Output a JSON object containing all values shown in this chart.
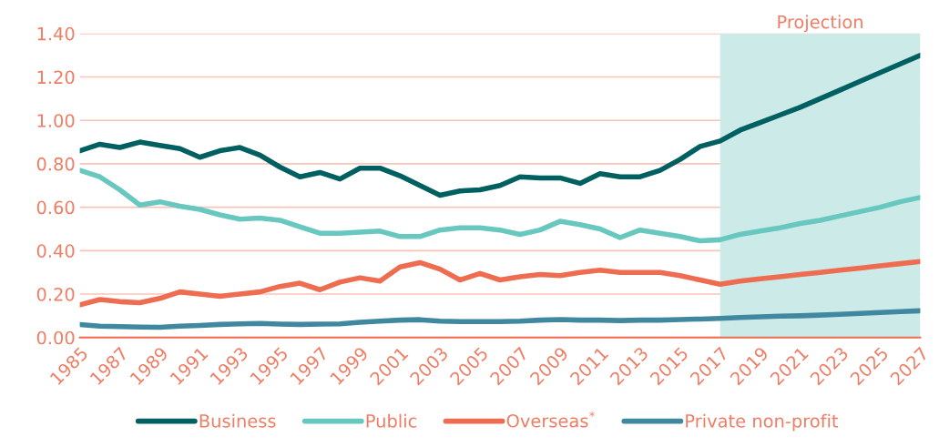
{
  "chart_data": {
    "type": "line",
    "x": [
      1985,
      1986,
      1987,
      1988,
      1989,
      1990,
      1991,
      1992,
      1993,
      1994,
      1995,
      1996,
      1997,
      1998,
      1999,
      2000,
      2001,
      2002,
      2003,
      2004,
      2005,
      2006,
      2007,
      2008,
      2009,
      2010,
      2011,
      2012,
      2013,
      2014,
      2015,
      2016,
      2017,
      2018,
      2019,
      2020,
      2021,
      2022,
      2023,
      2024,
      2025,
      2026,
      2027
    ],
    "series": [
      {
        "name": "Business",
        "color": "#005f60",
        "values": [
          0.86,
          0.89,
          0.875,
          0.9,
          0.885,
          0.87,
          0.83,
          0.86,
          0.875,
          0.84,
          0.785,
          0.74,
          0.76,
          0.73,
          0.78,
          0.78,
          0.745,
          0.7,
          0.655,
          0.675,
          0.68,
          0.7,
          0.74,
          0.735,
          0.735,
          0.71,
          0.755,
          0.74,
          0.74,
          0.77,
          0.82,
          0.88,
          0.905,
          0.955,
          0.99,
          1.025,
          1.06,
          1.1,
          1.14,
          1.18,
          1.22,
          1.26,
          1.3
        ]
      },
      {
        "name": "Public",
        "color": "#68c8c0",
        "values": [
          0.77,
          0.74,
          0.68,
          0.61,
          0.625,
          0.605,
          0.59,
          0.565,
          0.545,
          0.55,
          0.54,
          0.51,
          0.48,
          0.48,
          0.485,
          0.49,
          0.465,
          0.465,
          0.495,
          0.505,
          0.505,
          0.495,
          0.475,
          0.495,
          0.535,
          0.52,
          0.5,
          0.46,
          0.495,
          0.48,
          0.465,
          0.445,
          0.45,
          0.475,
          0.49,
          0.505,
          0.525,
          0.54,
          0.56,
          0.58,
          0.6,
          0.625,
          0.645
        ]
      },
      {
        "name": "Overseas$^{*}$",
        "color": "#ee6c50",
        "values": [
          0.15,
          0.175,
          0.165,
          0.16,
          0.18,
          0.21,
          0.2,
          0.19,
          0.2,
          0.21,
          0.235,
          0.25,
          0.22,
          0.255,
          0.275,
          0.26,
          0.325,
          0.345,
          0.315,
          0.265,
          0.295,
          0.265,
          0.28,
          0.29,
          0.285,
          0.3,
          0.31,
          0.3,
          0.3,
          0.3,
          0.285,
          0.265,
          0.245,
          0.26,
          0.27,
          0.28,
          0.29,
          0.3,
          0.31,
          0.32,
          0.33,
          0.34,
          0.35
        ]
      },
      {
        "name": "Private non-profit",
        "color": "#3f88a0",
        "values": [
          0.06,
          0.052,
          0.05,
          0.048,
          0.047,
          0.052,
          0.055,
          0.06,
          0.063,
          0.065,
          0.062,
          0.06,
          0.062,
          0.063,
          0.07,
          0.075,
          0.08,
          0.082,
          0.075,
          0.073,
          0.073,
          0.073,
          0.075,
          0.08,
          0.083,
          0.08,
          0.08,
          0.078,
          0.08,
          0.08,
          0.083,
          0.085,
          0.088,
          0.092,
          0.095,
          0.098,
          0.1,
          0.103,
          0.107,
          0.111,
          0.115,
          0.119,
          0.123
        ]
      }
    ],
    "xlim": [
      1985,
      2027
    ],
    "xticks": [
      1985,
      1987,
      1989,
      1991,
      1993,
      1995,
      1997,
      1999,
      2001,
      2003,
      2005,
      2007,
      2009,
      2011,
      2013,
      2015,
      2017,
      2019,
      2021,
      2023,
      2025,
      2027
    ],
    "ylim": [
      0,
      1.4
    ],
    "yticks": [
      {
        "value": 0,
        "label": "0.00"
      },
      {
        "value": 0.2,
        "label": "0.20"
      },
      {
        "value": 0.4,
        "label": "0.40"
      },
      {
        "value": 0.6,
        "label": "0.60"
      },
      {
        "value": 0.8,
        "label": "0.80"
      },
      {
        "value": 1.0,
        "label": "1.00"
      },
      {
        "value": 1.2,
        "label": "1.20"
      },
      {
        "value": 1.4,
        "label": "1.40"
      }
    ],
    "bands": [
      {
        "axis": "x",
        "from": 2017,
        "to": 2027,
        "label": "Projection",
        "color": "#cceae8"
      }
    ],
    "grid": "y",
    "legend": "bottom",
    "marker": "none",
    "line_style": "solid"
  }
}
